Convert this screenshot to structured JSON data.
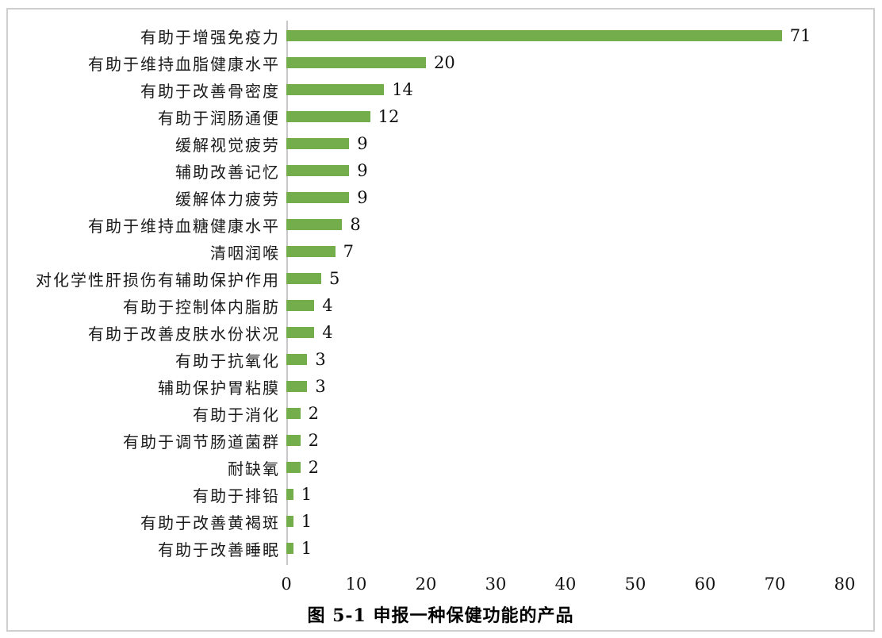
{
  "figure": {
    "caption": "图 5-1 申报一种保健功能的产品"
  },
  "chart_data": {
    "type": "bar",
    "orientation": "horizontal",
    "title": "图 5-1 申报一种保健功能的产品",
    "categories": [
      "有助于增强免疫力",
      "有助于维持血脂健康水平",
      "有助于改善骨密度",
      "有助于润肠通便",
      "缓解视觉疲劳",
      "辅助改善记忆",
      "缓解体力疲劳",
      "有助于维持血糖健康水平",
      "清咽润喉",
      "对化学性肝损伤有辅助保护作用",
      "有助于控制体内脂肪",
      "有助于改善皮肤水份状况",
      "有助于抗氧化",
      "辅助保护胃粘膜",
      "有助于消化",
      "有助于调节肠道菌群",
      "耐缺氧",
      "有助于排铅",
      "有助于改善黄褐斑",
      "有助于改善睡眠"
    ],
    "values": [
      71,
      20,
      14,
      12,
      9,
      9,
      9,
      8,
      7,
      5,
      4,
      4,
      3,
      3,
      2,
      2,
      2,
      1,
      1,
      1
    ],
    "data_labels": [
      71,
      20,
      14,
      12,
      9,
      9,
      9,
      8,
      7,
      5,
      4,
      4,
      3,
      3,
      2,
      2,
      2,
      1,
      1,
      1
    ],
    "xlabel": "",
    "ylabel": "",
    "xlim": [
      0,
      80
    ],
    "x_ticks": [
      0,
      10,
      20,
      30,
      40,
      50,
      60,
      70,
      80
    ],
    "grid": false,
    "legend": false,
    "bar_color": "#73AD4C",
    "axis_line_color": "#C8C8C8",
    "frame_border_color": "#CFCFCF",
    "text_color": "#111111"
  }
}
